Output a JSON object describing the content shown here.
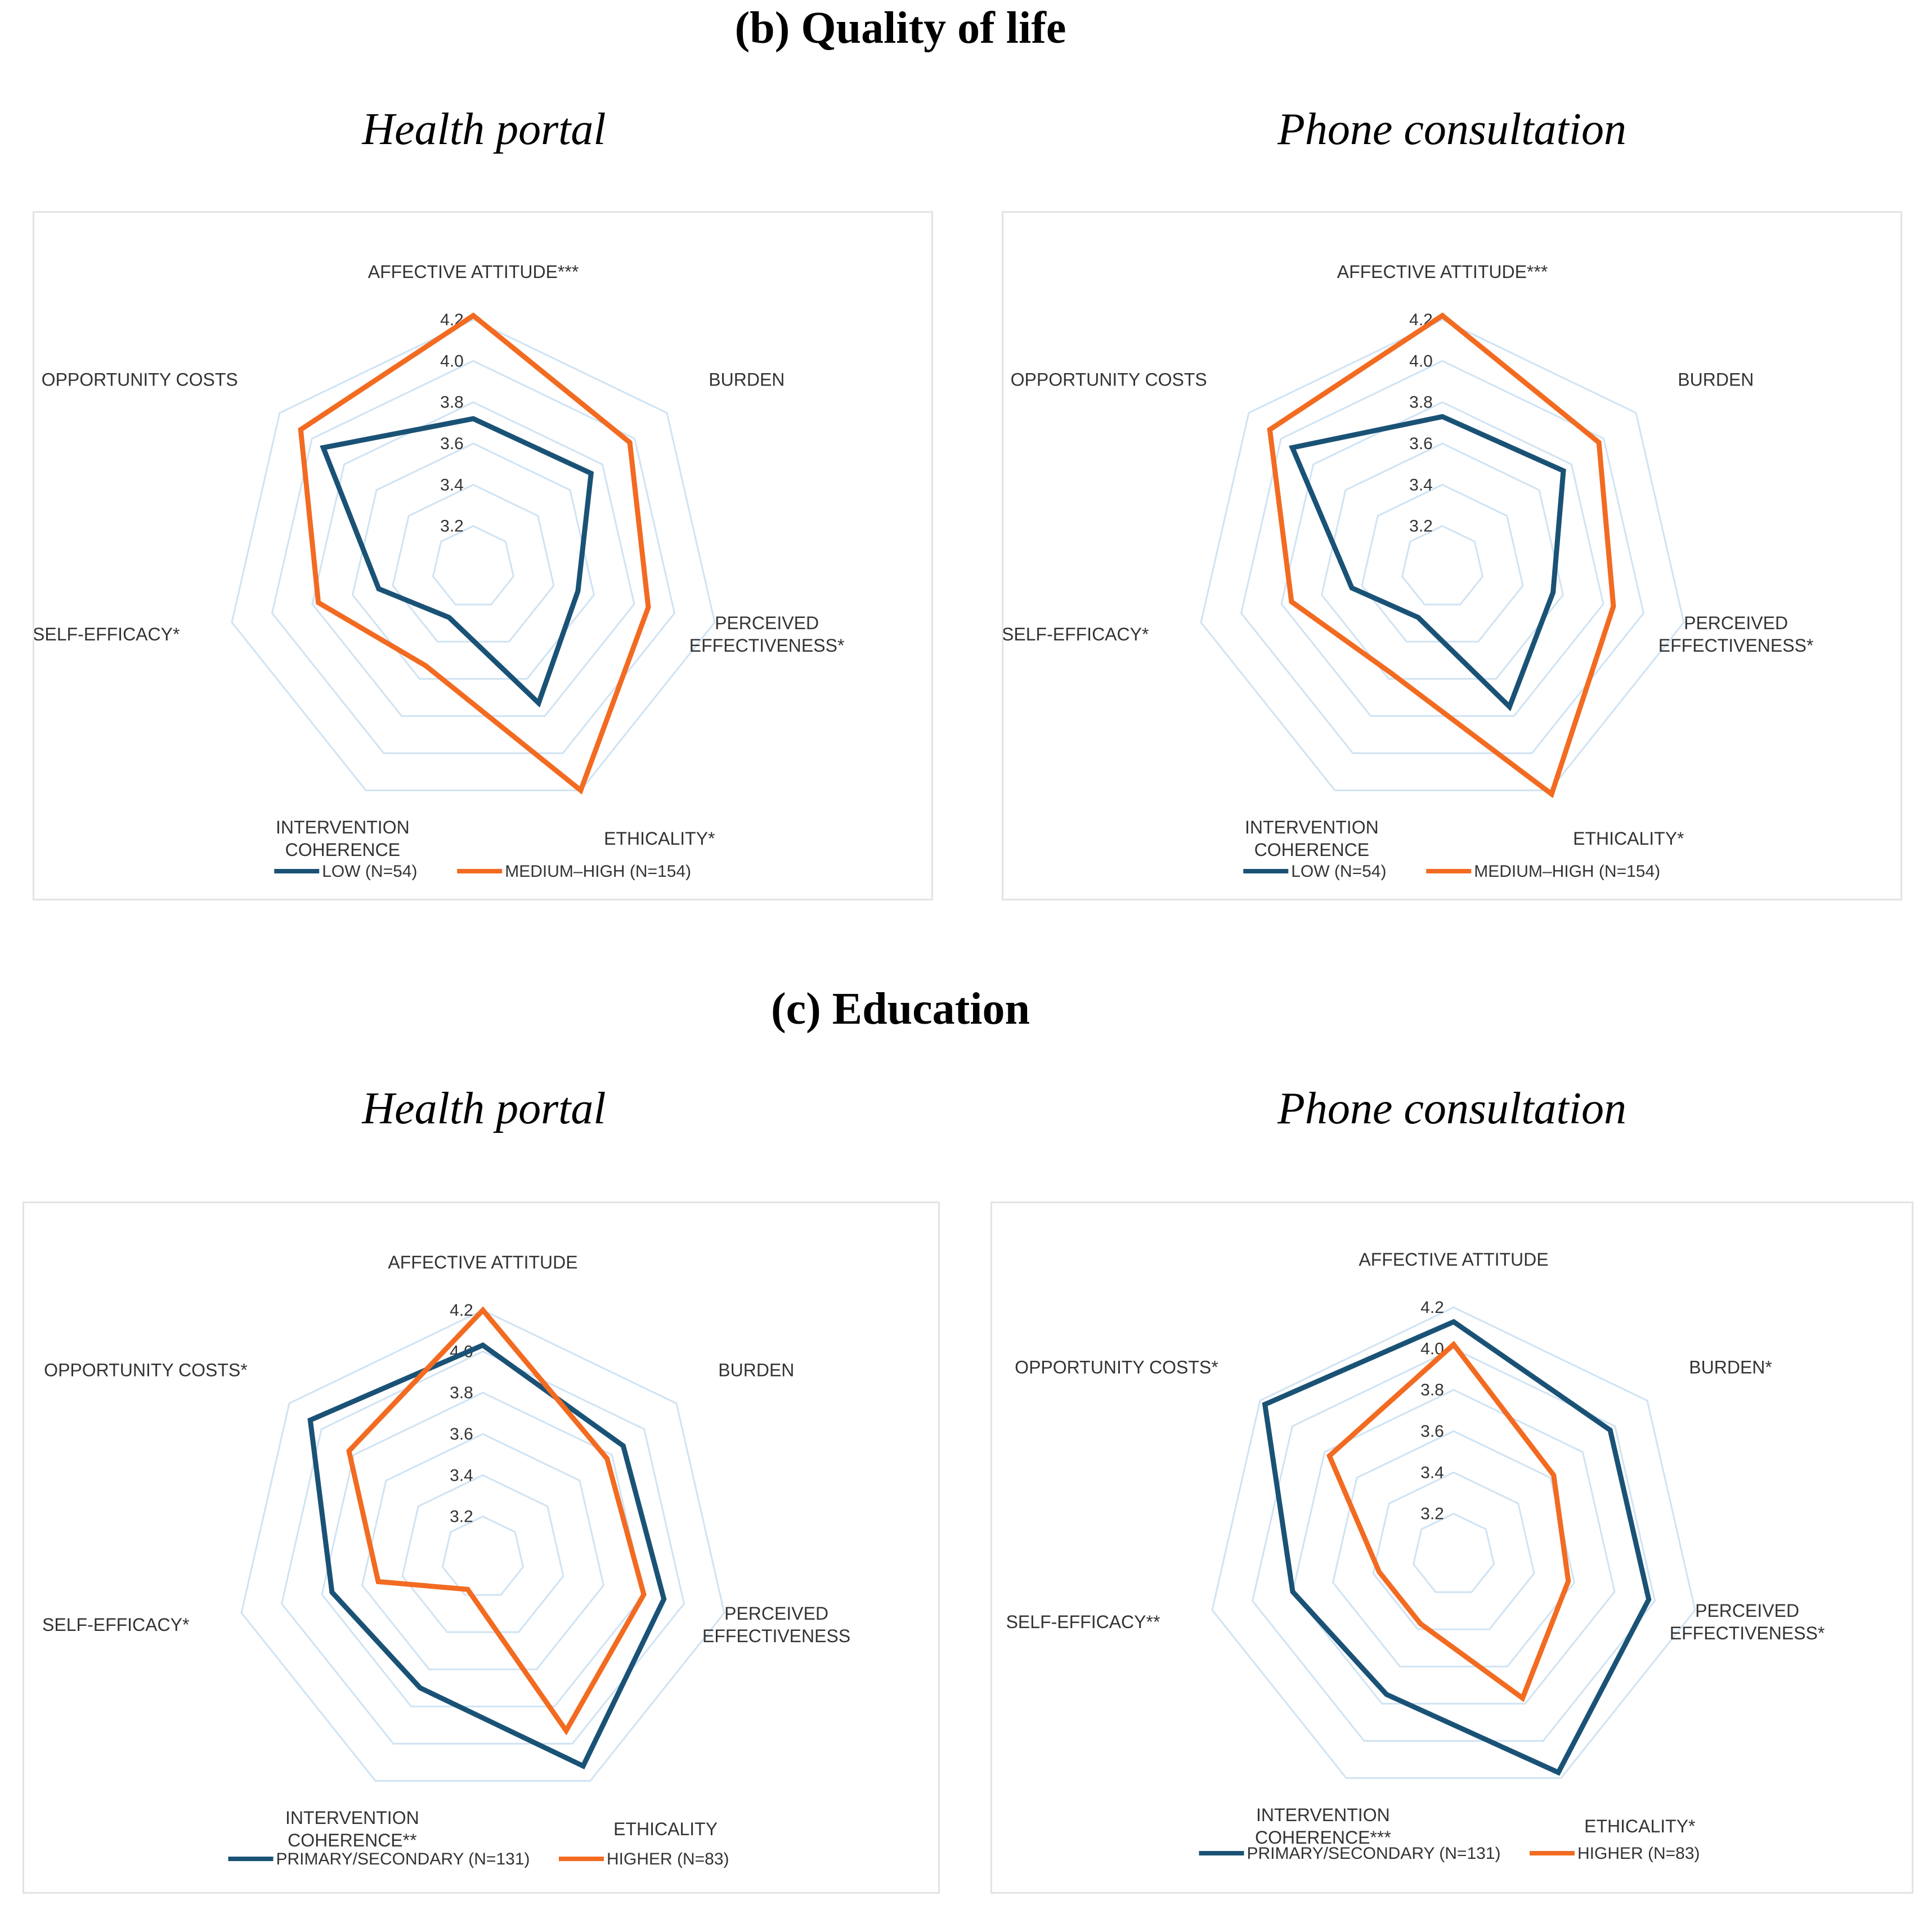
{
  "sections": [
    {
      "title": "(b) Quality of life"
    },
    {
      "title": "(c) Education"
    }
  ],
  "chart_data": [
    {
      "type": "radar",
      "section": "(b) Quality of life",
      "title": "Health portal",
      "axes": [
        "AFFECTIVE ATTITUDE***",
        "BURDEN",
        "PERCEIVED EFFECTIVENESS*",
        "ETHICALITY*",
        "INTERVENTION COHERENCE",
        "SELF-EFFICACY*",
        "OPPORTUNITY COSTS"
      ],
      "ticks": [
        "3.2",
        "3.4",
        "3.6",
        "3.8",
        "4.0",
        "4.2"
      ],
      "rlim": [
        3.0,
        4.2
      ],
      "series": [
        {
          "name": "LOW (N=54)",
          "color": "#1a5276",
          "values": [
            3.72,
            3.73,
            3.52,
            3.73,
            3.27,
            3.47,
            3.93
          ]
        },
        {
          "name": "MEDIUM–HIGH (N=154)",
          "color": "#f26b21",
          "values": [
            4.22,
            3.97,
            3.87,
            4.2,
            3.53,
            3.77,
            4.07
          ]
        }
      ]
    },
    {
      "type": "radar",
      "section": "(b) Quality of life",
      "title": "Phone consultation",
      "axes": [
        "AFFECTIVE ATTITUDE***",
        "BURDEN",
        "PERCEIVED EFFECTIVENESS*",
        "ETHICALITY*",
        "INTERVENTION COHERENCE",
        "SELF-EFFICACY*",
        "OPPORTUNITY COSTS"
      ],
      "ticks": [
        "3.2",
        "3.4",
        "3.6",
        "3.8",
        "4.0",
        "4.2"
      ],
      "rlim": [
        3.0,
        4.2
      ],
      "series": [
        {
          "name": "LOW (N=54)",
          "color": "#1a5276",
          "values": [
            3.73,
            3.75,
            3.55,
            3.75,
            3.27,
            3.45,
            3.93
          ]
        },
        {
          "name": "MEDIUM–HIGH (N=154)",
          "color": "#f26b21",
          "values": [
            4.22,
            3.97,
            3.85,
            4.22,
            3.57,
            3.75,
            4.07
          ]
        }
      ]
    },
    {
      "type": "radar",
      "section": "(c) Education",
      "title": "Health portal",
      "axes": [
        "AFFECTIVE ATTITUDE",
        "BURDEN",
        "PERCEIVED EFFECTIVENESS",
        "ETHICALITY",
        "INTERVENTION COHERENCE**",
        "SELF-EFFICACY*",
        "OPPORTUNITY COSTS*"
      ],
      "ticks": [
        "3.2",
        "3.4",
        "3.6",
        "3.8",
        "4.0",
        "4.2"
      ],
      "rlim": [
        3.0,
        4.2
      ],
      "series": [
        {
          "name": "PRIMARY/SECONDARY (N=131)",
          "color": "#1a5276",
          "values": [
            4.03,
            3.87,
            3.9,
            4.12,
            3.7,
            3.75,
            4.07
          ]
        },
        {
          "name": "HIGHER (N=83)",
          "color": "#f26b21",
          "values": [
            4.2,
            3.77,
            3.8,
            3.93,
            3.17,
            3.52,
            3.83
          ]
        }
      ]
    },
    {
      "type": "radar",
      "section": "(c) Education",
      "title": "Phone consultation",
      "axes": [
        "AFFECTIVE ATTITUDE",
        "BURDEN*",
        "PERCEIVED EFFECTIVENESS*",
        "ETHICALITY*",
        "INTERVENTION COHERENCE***",
        "SELF-EFFICACY**",
        "OPPORTUNITY COSTS*"
      ],
      "ticks": [
        "3.2",
        "3.4",
        "3.6",
        "3.8",
        "4.0",
        "4.2"
      ],
      "rlim": [
        3.0,
        4.2
      ],
      "series": [
        {
          "name": "PRIMARY/SECONDARY (N=131)",
          "color": "#1a5276",
          "values": [
            4.13,
            3.97,
            3.97,
            4.17,
            3.75,
            3.8,
            4.17
          ]
        },
        {
          "name": "HIGHER (N=83)",
          "color": "#f26b21",
          "values": [
            4.02,
            3.62,
            3.57,
            3.77,
            3.37,
            3.37,
            3.77
          ]
        }
      ]
    }
  ]
}
